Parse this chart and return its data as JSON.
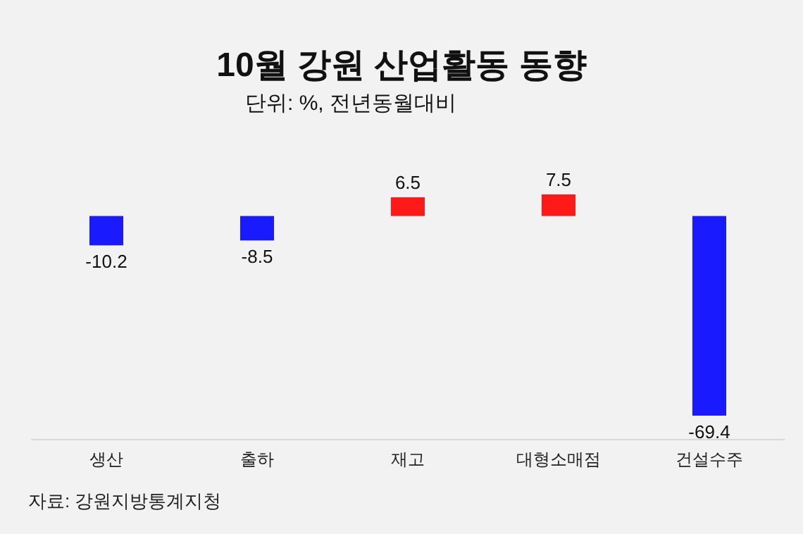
{
  "chart_data": {
    "type": "bar",
    "title": "10월 강원 산업활동 동향",
    "subtitle": "단위: %, 전년동월대비",
    "categories": [
      "생산",
      "출하",
      "재고",
      "대형소매점",
      "건설수주"
    ],
    "values": [
      -10.2,
      -8.5,
      6.5,
      7.5,
      -69.4
    ],
    "colors": [
      "#1a1aff",
      "#1a1aff",
      "#ff1a1a",
      "#ff1a1a",
      "#1a1aff"
    ],
    "data_labels": true,
    "annotations": [
      "자료: 강원지방통계지청"
    ]
  }
}
